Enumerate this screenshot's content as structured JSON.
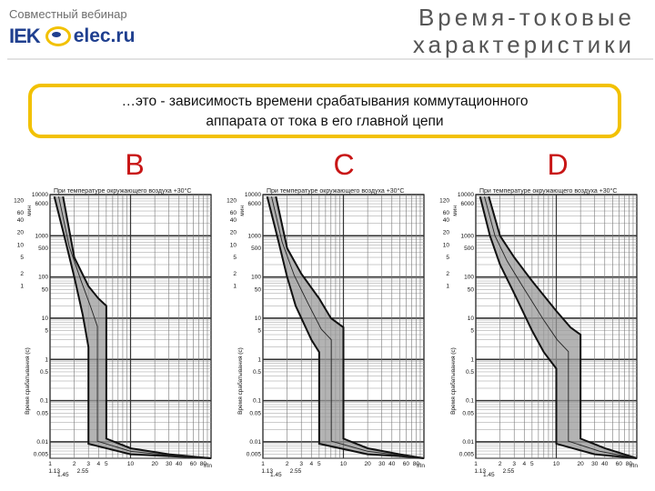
{
  "header": {
    "webinar": "Совместный вебинар",
    "brand_iek": "IEK",
    "brand_elec": "elec.ru",
    "title_line1": "Время-токовые",
    "title_line2": "характеристики"
  },
  "callout": {
    "line1": "…это - зависимость времени срабатывания коммутационного",
    "line2": "аппарата от тока в его главной цепи"
  },
  "chart_data": [
    {
      "type": "area",
      "curve": "B",
      "title": "При температуре окружающего воздуха +30°С",
      "ylabel": "Время срабатывания (с)",
      "xlabel": "I/In",
      "y_scale": "log",
      "ylim": [
        0.004,
        10000
      ],
      "xlim": [
        1,
        100
      ],
      "y_ticks_seconds": [
        "10000",
        "6000",
        "1000",
        "500",
        "100",
        "50",
        "10",
        "5",
        "1",
        "0.5",
        "0.1",
        "0.05",
        "0.01",
        "0.005"
      ],
      "y_ticks_minutes": [
        "120",
        "60",
        "40",
        "20",
        "10",
        "5",
        "2",
        "1"
      ],
      "y_minutes_label": "мин",
      "x_ticks": [
        "1",
        "2",
        "3",
        "4",
        "5",
        "10",
        "20",
        "30",
        "40",
        "60",
        "80"
      ],
      "x_extra_ticks": [
        "1.13",
        "1.45",
        "2.55"
      ],
      "instant_trip_range": [
        3,
        5
      ],
      "upper_band": [
        [
          1.45,
          9000
        ],
        [
          2,
          300
        ],
        [
          3,
          60
        ],
        [
          4,
          30
        ],
        [
          5,
          20
        ],
        [
          5,
          0.012
        ],
        [
          10,
          0.007
        ],
        [
          30,
          0.005
        ],
        [
          100,
          0.004
        ]
      ],
      "lower_band": [
        [
          1.13,
          9000
        ],
        [
          1.5,
          1000
        ],
        [
          2,
          100
        ],
        [
          2.55,
          12
        ],
        [
          3,
          2
        ],
        [
          3,
          0.009
        ],
        [
          10,
          0.005
        ],
        [
          30,
          0.0045
        ],
        [
          100,
          0.004
        ]
      ]
    },
    {
      "type": "area",
      "curve": "C",
      "title": "При температуре окружающего воздуха +30°С",
      "ylabel": "Время срабатывания (с)",
      "xlabel": "I/In",
      "y_scale": "log",
      "ylim": [
        0.004,
        10000
      ],
      "xlim": [
        1,
        100
      ],
      "y_ticks_seconds": [
        "10000",
        "6000",
        "1000",
        "500",
        "100",
        "50",
        "10",
        "5",
        "1",
        "0.5",
        "0.1",
        "0.05",
        "0.01",
        "0.005"
      ],
      "y_ticks_minutes": [
        "120",
        "60",
        "40",
        "20",
        "10",
        "5",
        "2",
        "1"
      ],
      "y_minutes_label": "мин",
      "x_ticks": [
        "1",
        "2",
        "3",
        "4",
        "5",
        "10",
        "20",
        "30",
        "40",
        "60",
        "80"
      ],
      "x_extra_ticks": [
        "1.13",
        "1.45",
        "2.55"
      ],
      "instant_trip_range": [
        5,
        10
      ],
      "upper_band": [
        [
          1.45,
          9000
        ],
        [
          2,
          500
        ],
        [
          3,
          120
        ],
        [
          5,
          30
        ],
        [
          7,
          10
        ],
        [
          10,
          6
        ],
        [
          10,
          0.012
        ],
        [
          20,
          0.007
        ],
        [
          50,
          0.005
        ],
        [
          100,
          0.004
        ]
      ],
      "lower_band": [
        [
          1.13,
          9000
        ],
        [
          1.5,
          1000
        ],
        [
          2,
          100
        ],
        [
          2.55,
          20
        ],
        [
          4,
          3
        ],
        [
          5,
          1.5
        ],
        [
          5,
          0.009
        ],
        [
          20,
          0.005
        ],
        [
          50,
          0.0045
        ],
        [
          100,
          0.004
        ]
      ]
    },
    {
      "type": "area",
      "curve": "D",
      "title": "При температуре окружающего воздуха +30°С",
      "ylabel": "Время срабатывания (с)",
      "xlabel": "I/In",
      "y_scale": "log",
      "ylim": [
        0.004,
        10000
      ],
      "xlim": [
        1,
        100
      ],
      "y_ticks_seconds": [
        "10000",
        "6000",
        "1000",
        "500",
        "100",
        "50",
        "10",
        "5",
        "1",
        "0.5",
        "0.1",
        "0.05",
        "0.01",
        "0.005"
      ],
      "y_ticks_minutes": [
        "120",
        "60",
        "40",
        "20",
        "10",
        "5",
        "2",
        "1"
      ],
      "y_minutes_label": "мин",
      "x_ticks": [
        "1",
        "2",
        "3",
        "4",
        "5",
        "10",
        "20",
        "30",
        "40",
        "60",
        "80"
      ],
      "x_extra_ticks": [
        "1.13",
        "1.45",
        "2.55"
      ],
      "instant_trip_range": [
        10,
        20
      ],
      "upper_band": [
        [
          1.45,
          9000
        ],
        [
          2,
          1000
        ],
        [
          3,
          300
        ],
        [
          5,
          80
        ],
        [
          10,
          15
        ],
        [
          15,
          6
        ],
        [
          20,
          4
        ],
        [
          20,
          0.012
        ],
        [
          40,
          0.007
        ],
        [
          100,
          0.004
        ]
      ],
      "lower_band": [
        [
          1.13,
          9000
        ],
        [
          1.5,
          1000
        ],
        [
          2,
          200
        ],
        [
          3,
          40
        ],
        [
          5,
          5
        ],
        [
          7,
          1.5
        ],
        [
          10,
          0.6
        ],
        [
          10,
          0.009
        ],
        [
          30,
          0.005
        ],
        [
          100,
          0.004
        ]
      ]
    }
  ]
}
